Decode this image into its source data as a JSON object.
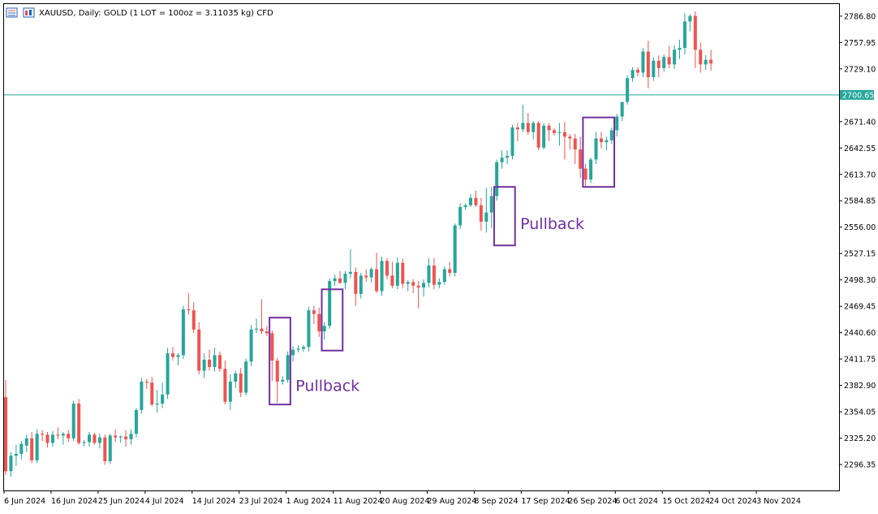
{
  "window": {
    "title": "XAUUSD, Daily:  GOLD (1 LOT = 100oz = 3.11035 kg) CFD",
    "icons": [
      "chart-window-icon",
      "chart-mode-icon"
    ]
  },
  "colors": {
    "bull": "#26a69a",
    "bear": "#ef5350",
    "hline": "#26a69a",
    "box": "#7030a0",
    "price_tag_text": "#ffffff"
  },
  "chart_data": {
    "type": "candlestick",
    "symbol": "XAUUSD",
    "timeframe": "Daily",
    "ylim": [
      2268,
      2800
    ],
    "y_ticks": [
      "2786.80",
      "2757.95",
      "2729.10",
      "2700.65",
      "2671.40",
      "2642.55",
      "2613.70",
      "2584.85",
      "2556.00",
      "2527.15",
      "2498.30",
      "2469.45",
      "2440.60",
      "2411.75",
      "2382.90",
      "2354.05",
      "2325.20",
      "2296.35"
    ],
    "x_labels": [
      {
        "label": "6 Jun 2024",
        "index": 0
      },
      {
        "label": "16 Jun 2024",
        "index": 9
      },
      {
        "label": "25 Jun 2024",
        "index": 18
      },
      {
        "label": "4 Jul 2024",
        "index": 27
      },
      {
        "label": "14 Jul 2024",
        "index": 36
      },
      {
        "label": "23 Jul 2024",
        "index": 45
      },
      {
        "label": "1 Aug 2024",
        "index": 54
      },
      {
        "label": "11 Aug 2024",
        "index": 63
      },
      {
        "label": "20 Aug 2024",
        "index": 72
      },
      {
        "label": "29 Aug 2024",
        "index": 81
      },
      {
        "label": "8 Sep 2024",
        "index": 90
      },
      {
        "label": "17 Sep 2024",
        "index": 99
      },
      {
        "label": "26 Sep 2024",
        "index": 108
      },
      {
        "label": "6 Oct 2024",
        "index": 117
      },
      {
        "label": "15 Oct 2024",
        "index": 126
      },
      {
        "label": "24 Oct 2024",
        "index": 135
      },
      {
        "label": "3 Nov 2024",
        "index": 144
      }
    ],
    "hline": {
      "value": 2700.65,
      "label": "2700.65"
    },
    "candles": [
      [
        2370,
        2389,
        2285,
        2289
      ],
      [
        2289,
        2310,
        2283,
        2306
      ],
      [
        2306,
        2318,
        2295,
        2308
      ],
      [
        2308,
        2322,
        2302,
        2319
      ],
      [
        2317,
        2329,
        2310,
        2325
      ],
      [
        2325,
        2332,
        2298,
        2301
      ],
      [
        2301,
        2335,
        2298,
        2330
      ],
      [
        2330,
        2334,
        2322,
        2329
      ],
      [
        2329,
        2332,
        2315,
        2320
      ],
      [
        2320,
        2333,
        2316,
        2329
      ],
      [
        2329,
        2337,
        2324,
        2328
      ],
      [
        2328,
        2332,
        2318,
        2330
      ],
      [
        2330,
        2334,
        2321,
        2325
      ],
      [
        2325,
        2366,
        2322,
        2363
      ],
      [
        2363,
        2368,
        2318,
        2320
      ],
      [
        2320,
        2323,
        2316,
        2321
      ],
      [
        2321,
        2332,
        2316,
        2329
      ],
      [
        2329,
        2331,
        2318,
        2320
      ],
      [
        2320,
        2330,
        2314,
        2326
      ],
      [
        2326,
        2329,
        2296,
        2300
      ],
      [
        2300,
        2330,
        2297,
        2328
      ],
      [
        2328,
        2335,
        2321,
        2326
      ],
      [
        2326,
        2328,
        2320,
        2327
      ],
      [
        2327,
        2334,
        2316,
        2324
      ],
      [
        2324,
        2335,
        2318,
        2330
      ],
      [
        2330,
        2358,
        2326,
        2356
      ],
      [
        2356,
        2391,
        2352,
        2387
      ],
      [
        2387,
        2390,
        2379,
        2386
      ],
      [
        2386,
        2392,
        2360,
        2362
      ],
      [
        2362,
        2378,
        2353,
        2363
      ],
      [
        2363,
        2386,
        2358,
        2373
      ],
      [
        2373,
        2424,
        2368,
        2418
      ],
      [
        2418,
        2425,
        2410,
        2414
      ],
      [
        2414,
        2418,
        2405,
        2416
      ],
      [
        2416,
        2470,
        2412,
        2466
      ],
      [
        2466,
        2484,
        2460,
        2465
      ],
      [
        2465,
        2474,
        2440,
        2444
      ],
      [
        2444,
        2452,
        2395,
        2399
      ],
      [
        2399,
        2418,
        2391,
        2411
      ],
      [
        2411,
        2422,
        2399,
        2403
      ],
      [
        2403,
        2424,
        2398,
        2416
      ],
      [
        2416,
        2420,
        2398,
        2401
      ],
      [
        2401,
        2410,
        2362,
        2365
      ],
      [
        2365,
        2395,
        2356,
        2387
      ],
      [
        2387,
        2399,
        2380,
        2396
      ],
      [
        2396,
        2402,
        2370,
        2375
      ],
      [
        2375,
        2412,
        2372,
        2409
      ],
      [
        2409,
        2449,
        2404,
        2444
      ],
      [
        2444,
        2456,
        2440,
        2445
      ],
      [
        2445,
        2477,
        2439,
        2442
      ],
      [
        2442,
        2448,
        2437,
        2440
      ],
      [
        2440,
        2443,
        2388,
        2410
      ],
      [
        2410,
        2413,
        2364,
        2387
      ],
      [
        2387,
        2393,
        2384,
        2389
      ],
      [
        2389,
        2420,
        2386,
        2416
      ],
      [
        2416,
        2426,
        2409,
        2422
      ],
      [
        2422,
        2427,
        2419,
        2423
      ],
      [
        2423,
        2427,
        2420,
        2425
      ],
      [
        2425,
        2469,
        2420,
        2465
      ],
      [
        2465,
        2470,
        2450,
        2461
      ],
      [
        2461,
        2468,
        2436,
        2442
      ],
      [
        2442,
        2452,
        2433,
        2448
      ],
      [
        2448,
        2500,
        2445,
        2497
      ],
      [
        2497,
        2504,
        2492,
        2500
      ],
      [
        2500,
        2508,
        2494,
        2495
      ],
      [
        2495,
        2508,
        2488,
        2505
      ],
      [
        2505,
        2532,
        2500,
        2507
      ],
      [
        2507,
        2512,
        2470,
        2483
      ],
      [
        2483,
        2506,
        2478,
        2503
      ],
      [
        2503,
        2510,
        2496,
        2501
      ],
      [
        2501,
        2512,
        2495,
        2510
      ],
      [
        2510,
        2528,
        2484,
        2486
      ],
      [
        2486,
        2524,
        2481,
        2519
      ],
      [
        2519,
        2522,
        2499,
        2503
      ],
      [
        2503,
        2518,
        2489,
        2492
      ],
      [
        2492,
        2523,
        2488,
        2517
      ],
      [
        2517,
        2522,
        2489,
        2494
      ],
      [
        2494,
        2498,
        2486,
        2496
      ],
      [
        2496,
        2499,
        2484,
        2492
      ],
      [
        2492,
        2497,
        2467,
        2490
      ],
      [
        2490,
        2499,
        2480,
        2495
      ],
      [
        2495,
        2522,
        2490,
        2514
      ],
      [
        2514,
        2522,
        2488,
        2493
      ],
      [
        2493,
        2500,
        2489,
        2496
      ],
      [
        2496,
        2513,
        2493,
        2510
      ],
      [
        2510,
        2518,
        2502,
        2506
      ],
      [
        2506,
        2560,
        2502,
        2558
      ],
      [
        2558,
        2582,
        2554,
        2578
      ],
      [
        2578,
        2582,
        2575,
        2580
      ],
      [
        2580,
        2592,
        2578,
        2588
      ],
      [
        2588,
        2596,
        2578,
        2580
      ],
      [
        2580,
        2588,
        2552,
        2562
      ],
      [
        2562,
        2599,
        2550,
        2572
      ],
      [
        2572,
        2600,
        2555,
        2590
      ],
      [
        2590,
        2630,
        2585,
        2627
      ],
      [
        2627,
        2640,
        2620,
        2632
      ],
      [
        2632,
        2640,
        2625,
        2634
      ],
      [
        2634,
        2668,
        2630,
        2665
      ],
      [
        2665,
        2670,
        2650,
        2663
      ],
      [
        2663,
        2690,
        2660,
        2670
      ],
      [
        2670,
        2681,
        2657,
        2660
      ],
      [
        2660,
        2672,
        2652,
        2670
      ],
      [
        2670,
        2672,
        2640,
        2643
      ],
      [
        2643,
        2670,
        2641,
        2667
      ],
      [
        2667,
        2670,
        2650,
        2662
      ],
      [
        2662,
        2664,
        2656,
        2659
      ],
      [
        2659,
        2670,
        2645,
        2660
      ],
      [
        2660,
        2671,
        2630,
        2655
      ],
      [
        2655,
        2658,
        2641,
        2653
      ],
      [
        2653,
        2658,
        2625,
        2641
      ],
      [
        2641,
        2655,
        2610,
        2620
      ],
      [
        2620,
        2625,
        2601,
        2608
      ],
      [
        2608,
        2632,
        2604,
        2630
      ],
      [
        2630,
        2660,
        2625,
        2653
      ],
      [
        2653,
        2660,
        2642,
        2649
      ],
      [
        2649,
        2655,
        2640,
        2651
      ],
      [
        2651,
        2665,
        2647,
        2662
      ],
      [
        2662,
        2680,
        2655,
        2677
      ],
      [
        2677,
        2690,
        2672,
        2693
      ],
      [
        2693,
        2722,
        2690,
        2719
      ],
      [
        2719,
        2731,
        2715,
        2728
      ],
      [
        2728,
        2731,
        2721,
        2725
      ],
      [
        2725,
        2752,
        2720,
        2748
      ],
      [
        2748,
        2760,
        2708,
        2720
      ],
      [
        2720,
        2742,
        2716,
        2738
      ],
      [
        2738,
        2744,
        2720,
        2730
      ],
      [
        2730,
        2745,
        2726,
        2742
      ],
      [
        2742,
        2754,
        2730,
        2734
      ],
      [
        2734,
        2755,
        2729,
        2750
      ],
      [
        2750,
        2761,
        2740,
        2752
      ],
      [
        2752,
        2790,
        2745,
        2781
      ],
      [
        2781,
        2789,
        2770,
        2787
      ],
      [
        2787,
        2792,
        2730,
        2750
      ],
      [
        2750,
        2758,
        2725,
        2734
      ],
      [
        2734,
        2744,
        2728,
        2739
      ],
      [
        2739,
        2750,
        2727,
        2735
      ]
    ],
    "annotations": [
      {
        "type": "box",
        "i0": 50.5,
        "i1": 54.5,
        "top": 2457,
        "bottom": 2362
      },
      {
        "type": "box",
        "i0": 60.5,
        "i1": 64.5,
        "top": 2488,
        "bottom": 2421
      },
      {
        "type": "box",
        "i0": 93.5,
        "i1": 97.5,
        "top": 2600,
        "bottom": 2536
      },
      {
        "type": "box",
        "i0": 110.5,
        "i1": 116.5,
        "top": 2676,
        "bottom": 2600
      },
      {
        "type": "text",
        "label": "Pullback",
        "i": 55.5,
        "y": 2383
      },
      {
        "type": "text",
        "label": "Pullback",
        "i": 98.5,
        "y": 2560
      }
    ]
  }
}
